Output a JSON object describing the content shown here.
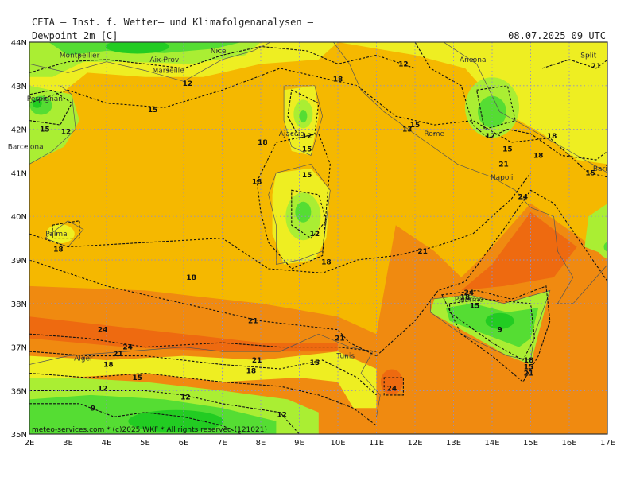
{
  "header": {
    "title": "CETA — Inst. f. Wetter— und Klimafolgenanalysen —",
    "variable": "Dewpoint 2m [C]",
    "datetime": "08.07.2025 09 UTC"
  },
  "axes": {
    "lon_labels": [
      "2E",
      "3E",
      "4E",
      "5E",
      "6E",
      "7E",
      "8E",
      "9E",
      "10E",
      "11E",
      "12E",
      "13E",
      "14E",
      "15E",
      "16E",
      "17E"
    ],
    "lat_labels": [
      "44N",
      "43N",
      "42N",
      "41N",
      "40N",
      "39N",
      "38N",
      "37N",
      "36N",
      "35N"
    ]
  },
  "cities": [
    {
      "name": "Montpellier",
      "lon": 3.3,
      "lat": 43.7
    },
    {
      "name": "Nice",
      "lon": 6.9,
      "lat": 43.8
    },
    {
      "name": "Aix-Prov",
      "lon": 5.5,
      "lat": 43.6
    },
    {
      "name": "Marseille",
      "lon": 5.6,
      "lat": 43.35
    },
    {
      "name": "Perpignan",
      "lon": 2.4,
      "lat": 42.7
    },
    {
      "name": "Barcelona",
      "lon": 1.9,
      "lat": 41.6
    },
    {
      "name": "Ajaccio",
      "lon": 8.8,
      "lat": 41.9
    },
    {
      "name": "Ancona",
      "lon": 13.5,
      "lat": 43.6
    },
    {
      "name": "Split",
      "lon": 16.5,
      "lat": 43.7
    },
    {
      "name": "Rome",
      "lon": 12.5,
      "lat": 41.9
    },
    {
      "name": "Napoli",
      "lon": 14.25,
      "lat": 40.9
    },
    {
      "name": "Bari",
      "lon": 16.8,
      "lat": 41.1
    },
    {
      "name": "Palma",
      "lon": 2.7,
      "lat": 39.6
    },
    {
      "name": "Palermo",
      "lon": 13.4,
      "lat": 38.1
    },
    {
      "name": "Alger",
      "lon": 3.4,
      "lat": 36.75
    },
    {
      "name": "Tunis",
      "lon": 10.2,
      "lat": 36.8
    }
  ],
  "contour_labels": [
    {
      "text": "12",
      "lon": 11.7,
      "lat": 43.5
    },
    {
      "text": "21",
      "lon": 16.7,
      "lat": 43.45
    },
    {
      "text": "18",
      "lon": 10.0,
      "lat": 43.15
    },
    {
      "text": "12",
      "lon": 6.1,
      "lat": 43.05
    },
    {
      "text": "15",
      "lon": 5.2,
      "lat": 42.45
    },
    {
      "text": "15",
      "lon": 2.4,
      "lat": 42.0
    },
    {
      "text": "12",
      "lon": 2.95,
      "lat": 41.95
    },
    {
      "text": "13",
      "lon": 11.8,
      "lat": 42.0
    },
    {
      "text": "15",
      "lon": 12.0,
      "lat": 42.1
    },
    {
      "text": "12",
      "lon": 13.95,
      "lat": 41.85
    },
    {
      "text": "18",
      "lon": 15.55,
      "lat": 41.85
    },
    {
      "text": "12",
      "lon": 9.2,
      "lat": 41.85
    },
    {
      "text": "15",
      "lon": 9.2,
      "lat": 41.55
    },
    {
      "text": "18",
      "lon": 8.05,
      "lat": 41.7
    },
    {
      "text": "15",
      "lon": 14.4,
      "lat": 41.55
    },
    {
      "text": "18",
      "lon": 15.2,
      "lat": 41.4
    },
    {
      "text": "21",
      "lon": 14.3,
      "lat": 41.2
    },
    {
      "text": "15",
      "lon": 16.55,
      "lat": 41.0
    },
    {
      "text": "15",
      "lon": 9.2,
      "lat": 40.95
    },
    {
      "text": "18",
      "lon": 7.9,
      "lat": 40.8
    },
    {
      "text": "24",
      "lon": 14.8,
      "lat": 40.45
    },
    {
      "text": "12",
      "lon": 9.4,
      "lat": 39.6
    },
    {
      "text": "18",
      "lon": 2.75,
      "lat": 39.25
    },
    {
      "text": "21",
      "lon": 12.2,
      "lat": 39.2
    },
    {
      "text": "18",
      "lon": 9.7,
      "lat": 38.95
    },
    {
      "text": "18",
      "lon": 6.2,
      "lat": 38.6
    },
    {
      "text": "24",
      "lon": 13.4,
      "lat": 38.25
    },
    {
      "text": "18",
      "lon": 13.3,
      "lat": 38.15
    },
    {
      "text": "15",
      "lon": 13.55,
      "lat": 37.95
    },
    {
      "text": "21",
      "lon": 7.8,
      "lat": 37.6
    },
    {
      "text": "24",
      "lon": 3.9,
      "lat": 37.4
    },
    {
      "text": "9",
      "lon": 14.2,
      "lat": 37.4
    },
    {
      "text": "21",
      "lon": 10.05,
      "lat": 37.2
    },
    {
      "text": "24",
      "lon": 4.55,
      "lat": 37.0
    },
    {
      "text": "21",
      "lon": 4.3,
      "lat": 36.85
    },
    {
      "text": "21",
      "lon": 7.9,
      "lat": 36.7
    },
    {
      "text": "15",
      "lon": 9.4,
      "lat": 36.65
    },
    {
      "text": "18",
      "lon": 14.95,
      "lat": 36.7
    },
    {
      "text": "18",
      "lon": 4.05,
      "lat": 36.6
    },
    {
      "text": "15",
      "lon": 14.95,
      "lat": 36.55
    },
    {
      "text": "21",
      "lon": 14.95,
      "lat": 36.4
    },
    {
      "text": "18",
      "lon": 7.75,
      "lat": 36.45
    },
    {
      "text": "15",
      "lon": 4.8,
      "lat": 36.3
    },
    {
      "text": "24",
      "lon": 11.4,
      "lat": 36.05
    },
    {
      "text": "12",
      "lon": 3.9,
      "lat": 36.05
    },
    {
      "text": "12",
      "lon": 6.05,
      "lat": 35.85
    },
    {
      "text": "9",
      "lon": 3.65,
      "lat": 35.6
    },
    {
      "text": "12",
      "lon": 8.55,
      "lat": 35.45
    }
  ],
  "credit": "meteo-services.com * (c)2025 WKF * All rights reserved (121021)",
  "colors": {
    "c_lt9": "#22cc22",
    "c_9_12": "#55dd33",
    "c_12_15": "#aaee33",
    "c_15_18": "#eeee22",
    "c_18_21": "#f5b800",
    "c_21_24": "#f08a10",
    "c_gt24": "#ee6a10",
    "contour": "#111111",
    "grid": "#9090c8",
    "coast": "#555555"
  }
}
